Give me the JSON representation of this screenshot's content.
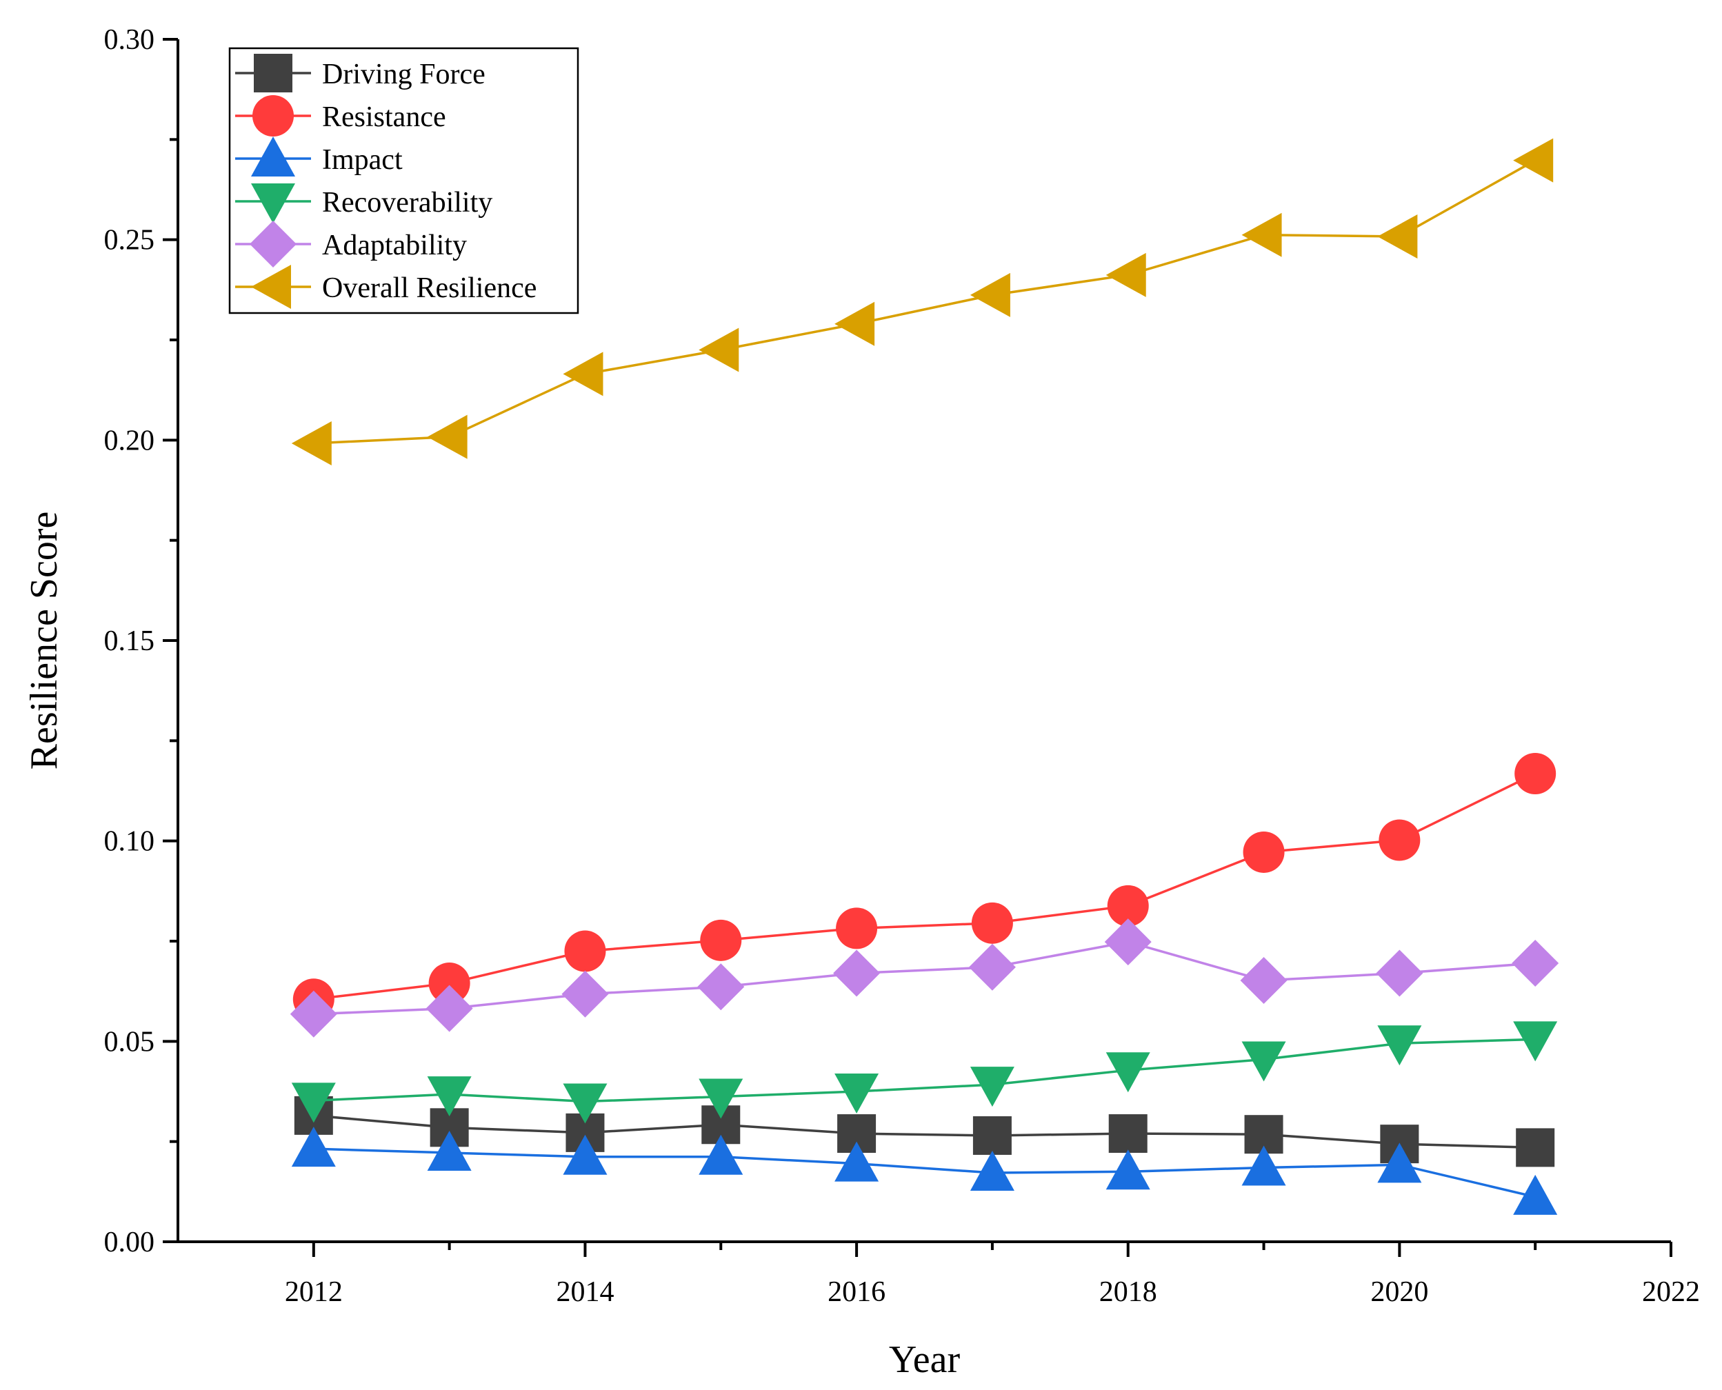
{
  "chart_data": {
    "type": "line",
    "title": "",
    "xlabel": "Year",
    "ylabel": "Resilience Score",
    "xlim": [
      2011,
      2022
    ],
    "ylim": [
      0.0,
      0.3
    ],
    "x_ticks": [
      "2012",
      "2014",
      "2016",
      "2018",
      "2020",
      "2022"
    ],
    "y_ticks": [
      "0.00",
      "0.05",
      "0.10",
      "0.15",
      "0.20",
      "0.25",
      "0.30"
    ],
    "grid": false,
    "legend_position": "top-left",
    "x": [
      2012,
      2013,
      2014,
      2015,
      2016,
      2017,
      2018,
      2019,
      2020,
      2021
    ],
    "series": [
      {
        "name": "Driving Force",
        "color": "#404040",
        "marker": "square",
        "values": [
          0.0315,
          0.0285,
          0.0272,
          0.0292,
          0.027,
          0.0265,
          0.027,
          0.0268,
          0.0244,
          0.0235
        ]
      },
      {
        "name": "Resistance",
        "color": "#ff3b3b",
        "marker": "circle",
        "values": [
          0.0605,
          0.0645,
          0.0725,
          0.0752,
          0.0782,
          0.0795,
          0.0838,
          0.0972,
          0.1002,
          0.1168
        ]
      },
      {
        "name": "Impact",
        "color": "#1a6fe0",
        "marker": "triangle-up",
        "values": [
          0.0232,
          0.0222,
          0.0212,
          0.0212,
          0.0195,
          0.0172,
          0.0175,
          0.0185,
          0.0192,
          0.0112
        ]
      },
      {
        "name": "Recoverability",
        "color": "#1fae6a",
        "marker": "triangle-down",
        "values": [
          0.0352,
          0.0368,
          0.035,
          0.0362,
          0.0375,
          0.0392,
          0.0428,
          0.0455,
          0.0495,
          0.0505
        ]
      },
      {
        "name": "Adaptability",
        "color": "#c183e8",
        "marker": "diamond",
        "values": [
          0.0568,
          0.0582,
          0.0618,
          0.0636,
          0.067,
          0.0685,
          0.0748,
          0.0652,
          0.067,
          0.0695
        ]
      },
      {
        "name": "Overall Resilience",
        "color": "#d9a000",
        "marker": "triangle-left",
        "values": [
          0.1992,
          0.2008,
          0.2165,
          0.2225,
          0.229,
          0.2362,
          0.2412,
          0.2512,
          0.2508,
          0.2698
        ]
      }
    ]
  }
}
